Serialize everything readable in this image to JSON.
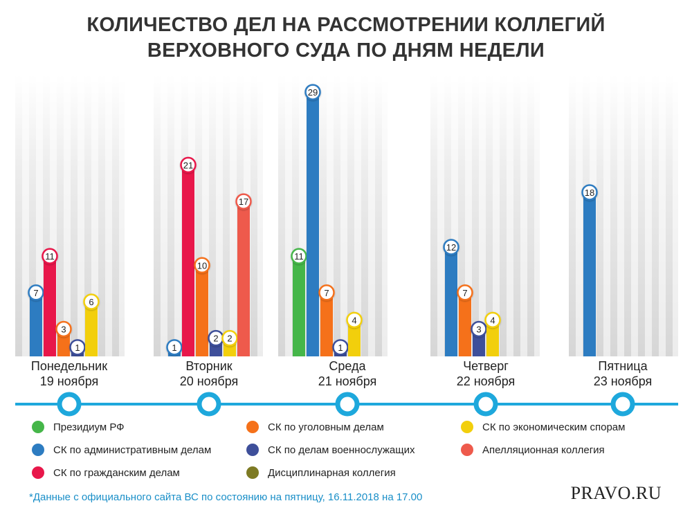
{
  "title_line1": "КОЛИЧЕСТВО ДЕЛ НА РАССМОТРЕНИИ КОЛЛЕГИЙ",
  "title_line2": "ВЕРХОВНОГО СУДА ПО ДНЯМ НЕДЕЛИ",
  "chart_data": {
    "type": "bar",
    "title": "КОЛИЧЕСТВО ДЕЛ НА РАССМОТРЕНИИ КОЛЛЕГИЙ ВЕРХОВНОГО СУДА ПО ДНЯМ НЕДЕЛИ",
    "ylim": [
      0,
      29
    ],
    "categories": [
      {
        "day": "Понедельник",
        "date": "19 ноября"
      },
      {
        "day": "Вторник",
        "date": "20 ноября"
      },
      {
        "day": "Среда",
        "date": "21 ноября"
      },
      {
        "day": "Четверг",
        "date": "22 ноября"
      },
      {
        "day": "Пятница",
        "date": "23 ноября"
      }
    ],
    "bars": [
      [
        {
          "series": "adm",
          "value": 7
        },
        {
          "series": "civ",
          "value": 11
        },
        {
          "series": "crim",
          "value": 3
        },
        {
          "series": "mil",
          "value": 1
        },
        {
          "series": "econ",
          "value": 6
        }
      ],
      [
        {
          "series": "adm",
          "value": 1
        },
        {
          "series": "civ",
          "value": 21
        },
        {
          "series": "crim",
          "value": 10
        },
        {
          "series": "mil",
          "value": 2
        },
        {
          "series": "econ",
          "value": 2
        },
        {
          "series": "appeal",
          "value": 17
        }
      ],
      [
        {
          "series": "pres",
          "value": 11
        },
        {
          "series": "adm",
          "value": 29
        },
        {
          "series": "crim",
          "value": 7
        },
        {
          "series": "mil",
          "value": 1
        },
        {
          "series": "econ",
          "value": 4
        }
      ],
      [
        {
          "series": "adm",
          "value": 12
        },
        {
          "series": "crim",
          "value": 7
        },
        {
          "series": "mil",
          "value": 3
        },
        {
          "series": "econ",
          "value": 4
        }
      ],
      [
        {
          "series": "adm",
          "value": 18
        }
      ]
    ],
    "series": [
      {
        "key": "pres",
        "name": "Президиум РФ",
        "color": "#45b649"
      },
      {
        "key": "adm",
        "name": "СК по административным делам",
        "color": "#2d7cc1"
      },
      {
        "key": "civ",
        "name": "СК по гражданским делам",
        "color": "#e8174a"
      },
      {
        "key": "crim",
        "name": "СК по уголовным делам",
        "color": "#f5711a"
      },
      {
        "key": "mil",
        "name": "СК по делам военнослужащих",
        "color": "#3e4f9a"
      },
      {
        "key": "disc",
        "name": "Дисциплинарная коллегия",
        "color": "#7d7a23"
      },
      {
        "key": "econ",
        "name": "СК по экономическим спорам",
        "color": "#f2cf0c"
      },
      {
        "key": "appeal",
        "name": "Апелляционная коллегия",
        "color": "#ee5a4c"
      }
    ]
  },
  "timeline_color": "#1ea8dc",
  "footnote": "*Данные с официального сайта ВС по состоянию на пятницу, 16.11.2018 на 17.00",
  "brand": "PRAVO.RU"
}
